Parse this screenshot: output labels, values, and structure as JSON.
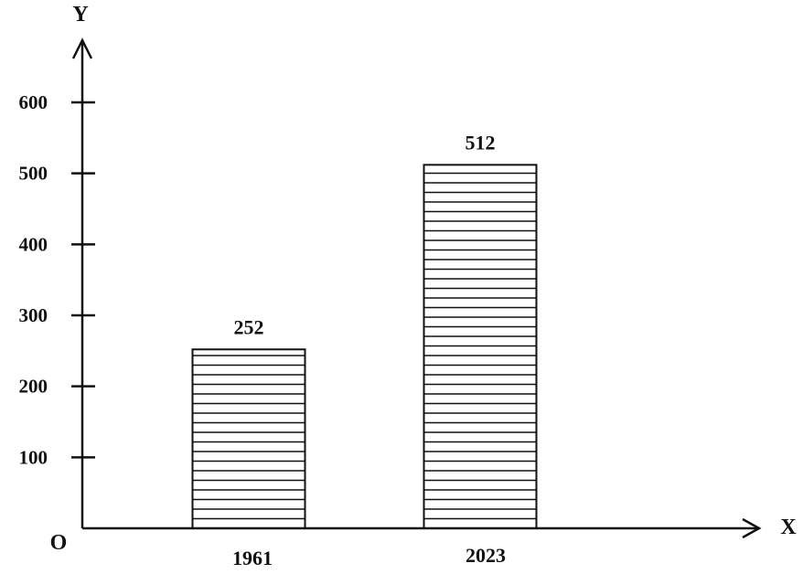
{
  "chart_data": {
    "type": "bar",
    "categories": [
      "1961",
      "2023"
    ],
    "values": [
      252,
      512
    ],
    "data_labels": [
      "252",
      "512"
    ],
    "xlabel": "X",
    "ylabel": "Y",
    "origin_label": "O",
    "ylim": [
      0,
      600
    ],
    "yticks": [
      100,
      200,
      300,
      400,
      500,
      600
    ],
    "ytick_labels": [
      "100",
      "200",
      "300",
      "400",
      "500",
      "600"
    ],
    "bar_fill_pattern": "horizontal-hatch",
    "grid": false,
    "legend": "none",
    "colors": {
      "ink": "#111111",
      "background": "#ffffff"
    }
  }
}
